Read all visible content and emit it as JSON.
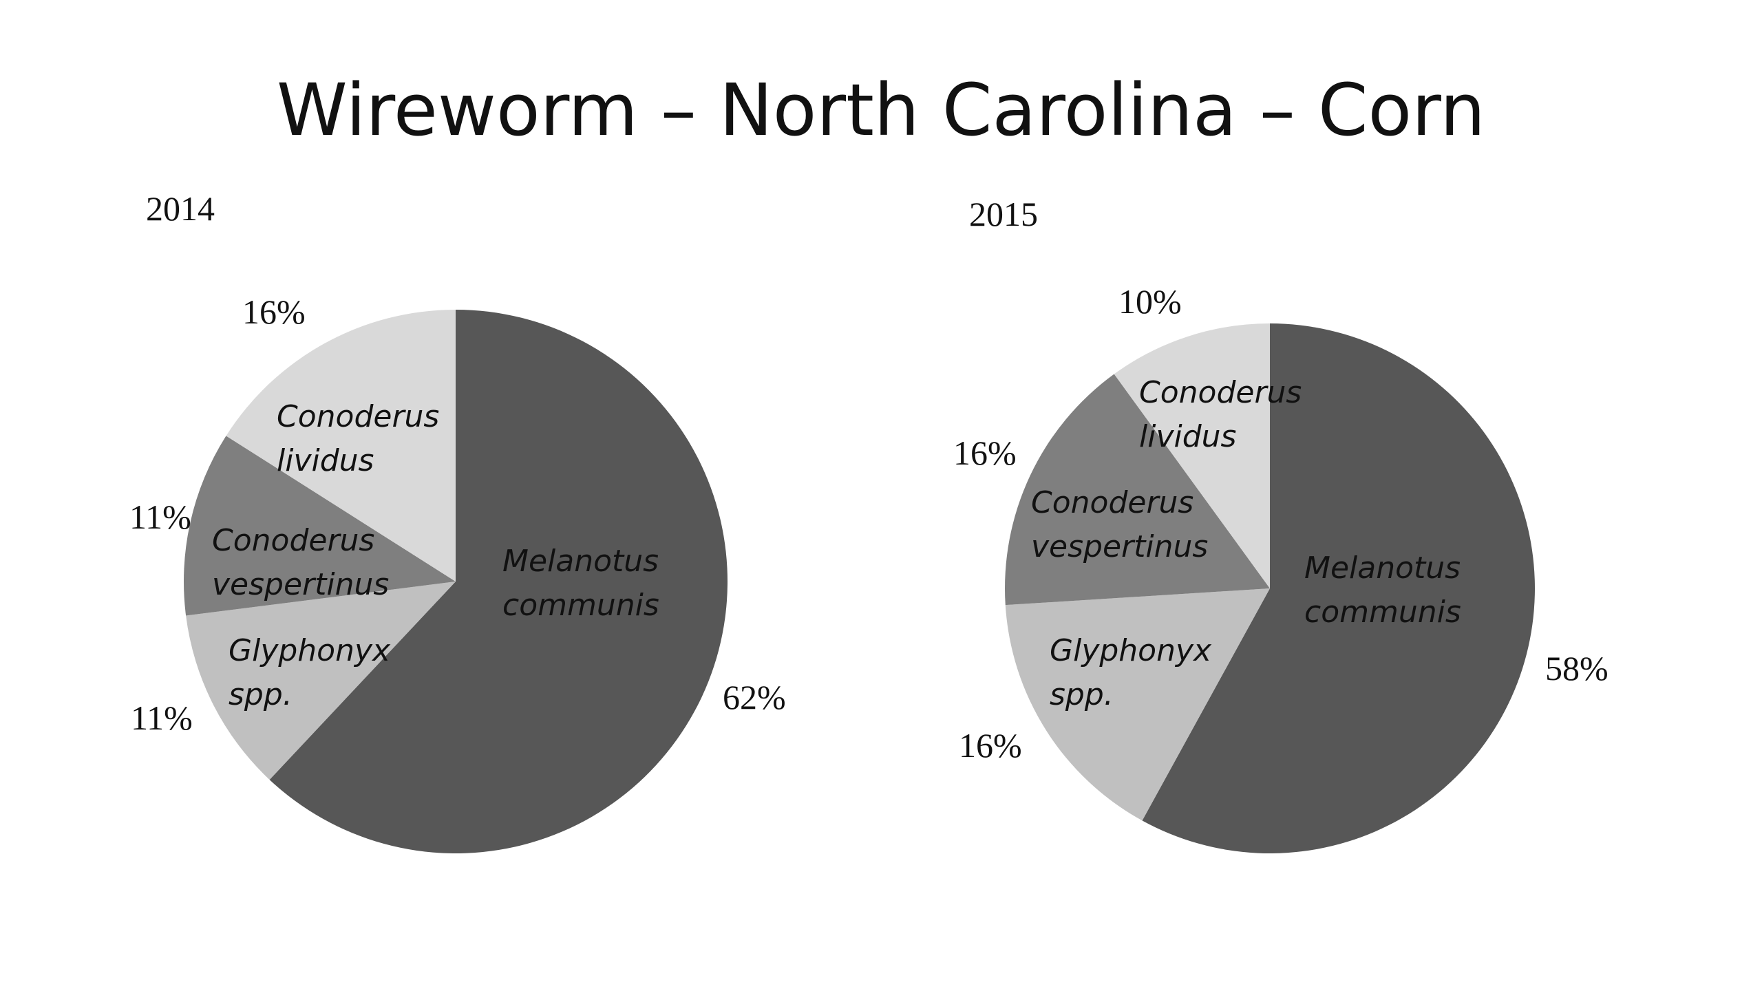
{
  "title": "Wireworm – North Carolina – Corn",
  "chart_data": [
    {
      "type": "pie",
      "title": "2014",
      "categories": [
        "Melanotus communis",
        "Glyphonyx spp.",
        "Conoderus vespertinus",
        "Conoderus lividus"
      ],
      "label_lines": [
        [
          "Melanotus",
          "communis"
        ],
        [
          "Glyphonyx",
          "spp."
        ],
        [
          "Conoderus",
          "vespertinus"
        ],
        [
          "Conoderus",
          "lividus"
        ]
      ],
      "values": [
        62,
        11,
        11,
        16
      ],
      "value_labels": [
        "62%",
        "11%",
        "11%",
        "16%"
      ],
      "colors": [
        "#575757",
        "#c0c0c0",
        "#7f7f7f",
        "#d9d9d9"
      ],
      "legend": "none"
    },
    {
      "type": "pie",
      "title": "2015",
      "categories": [
        "Melanotus communis",
        "Glyphonyx spp.",
        "Conoderus vespertinus",
        "Conoderus lividus"
      ],
      "label_lines": [
        [
          "Melanotus",
          "communis"
        ],
        [
          "Glyphonyx",
          "spp."
        ],
        [
          "Conoderus",
          "vespertinus"
        ],
        [
          "Conoderus",
          "lividus"
        ]
      ],
      "values": [
        58,
        16,
        16,
        10
      ],
      "value_labels": [
        "58%",
        "16%",
        "16%",
        "10%"
      ],
      "colors": [
        "#575757",
        "#c0c0c0",
        "#7f7f7f",
        "#d9d9d9"
      ],
      "legend": "none"
    }
  ]
}
